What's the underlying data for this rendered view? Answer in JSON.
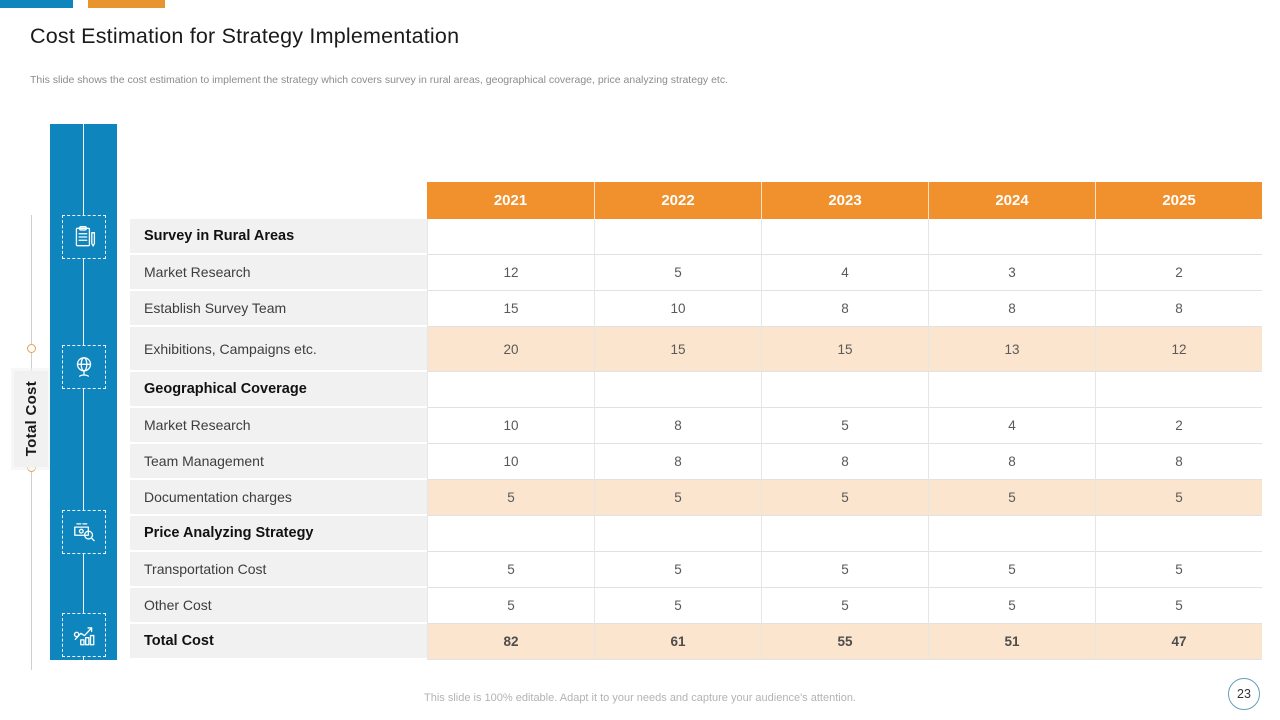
{
  "colors": {
    "accent_blue": "#0E86BD",
    "accent_orange": "#F0912E",
    "highlight_peach": "#FBE5CE",
    "label_gray": "#F1F1F2"
  },
  "header": {
    "title": "Cost Estimation for Strategy Implementation",
    "subtitle": "This slide shows the cost estimation to implement the strategy which covers survey in rural areas, geographical coverage, price analyzing strategy etc."
  },
  "sidebar": {
    "vertical_label": "Total Cost",
    "icons": [
      "survey-clipboard-icon",
      "globe-icon",
      "price-analysis-icon",
      "growth-chart-icon"
    ]
  },
  "table": {
    "years": [
      "2021",
      "2022",
      "2023",
      "2024",
      "2025"
    ],
    "rows": [
      {
        "label": "Survey in Rural Areas",
        "type": "section",
        "highlight": false,
        "tall": false,
        "values": [
          "",
          "",
          "",
          "",
          ""
        ]
      },
      {
        "label": "Market Research",
        "type": "data",
        "highlight": false,
        "tall": false,
        "values": [
          12,
          5,
          4,
          3,
          2
        ]
      },
      {
        "label": "Establish Survey Team",
        "type": "data",
        "highlight": false,
        "tall": false,
        "values": [
          15,
          10,
          8,
          8,
          8
        ]
      },
      {
        "label": "Exhibitions, Campaigns etc.",
        "type": "data",
        "highlight": true,
        "tall": true,
        "values": [
          20,
          15,
          15,
          13,
          12
        ]
      },
      {
        "label": "Geographical Coverage",
        "type": "section",
        "highlight": false,
        "tall": false,
        "values": [
          "",
          "",
          "",
          "",
          ""
        ]
      },
      {
        "label": "Market Research",
        "type": "data",
        "highlight": false,
        "tall": false,
        "values": [
          10,
          8,
          5,
          4,
          2
        ]
      },
      {
        "label": "Team Management",
        "type": "data",
        "highlight": false,
        "tall": false,
        "values": [
          10,
          8,
          8,
          8,
          8
        ]
      },
      {
        "label": "Documentation charges",
        "type": "data",
        "highlight": true,
        "tall": false,
        "values": [
          5,
          5,
          5,
          5,
          5
        ]
      },
      {
        "label": "Price Analyzing Strategy",
        "type": "section",
        "highlight": false,
        "tall": false,
        "values": [
          "",
          "",
          "",
          "",
          ""
        ]
      },
      {
        "label": "Transportation Cost",
        "type": "data",
        "highlight": false,
        "tall": false,
        "values": [
          5,
          5,
          5,
          5,
          5
        ]
      },
      {
        "label": "Other Cost",
        "type": "data",
        "highlight": false,
        "tall": false,
        "values": [
          5,
          5,
          5,
          5,
          5
        ]
      },
      {
        "label": "Total Cost",
        "type": "total",
        "highlight": true,
        "tall": false,
        "values": [
          82,
          61,
          55,
          51,
          47
        ]
      }
    ]
  },
  "footer": {
    "note": "This slide is 100% editable. Adapt it to your needs and capture your audience's attention.",
    "page_number": "23"
  }
}
